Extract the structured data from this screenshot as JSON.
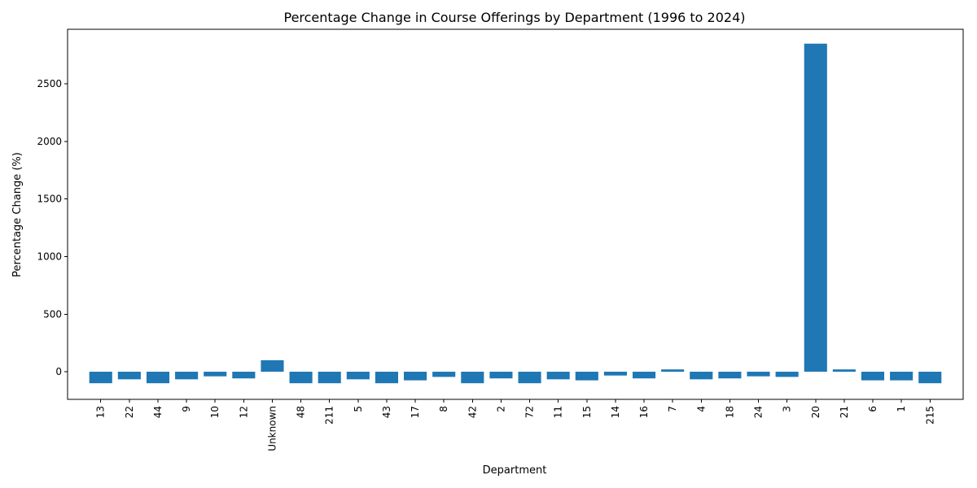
{
  "chart_data": {
    "type": "bar",
    "title": "Percentage Change in Course Offerings by Department (1996 to 2024)",
    "xlabel": "Department",
    "ylabel": "Percentage Change (%)",
    "categories": [
      "13",
      "22",
      "44",
      "9",
      "10",
      "12",
      "Unknown",
      "48",
      "211",
      "5",
      "43",
      "17",
      "8",
      "42",
      "2",
      "72",
      "11",
      "15",
      "14",
      "16",
      "7",
      "4",
      "18",
      "24",
      "3",
      "20",
      "21",
      "6",
      "1",
      "215"
    ],
    "values": [
      -100,
      -66,
      -100,
      -66,
      -40,
      -58,
      100,
      -100,
      -100,
      -66,
      -100,
      -75,
      -45,
      -100,
      -58,
      -100,
      -66,
      -75,
      -33,
      -58,
      20,
      -66,
      -58,
      -40,
      -45,
      2850,
      20,
      -75,
      -75,
      -100
    ],
    "ylim": [
      -240,
      2975
    ],
    "yticks": [
      0,
      500,
      1000,
      1500,
      2000,
      2500
    ],
    "grid": false,
    "bar_color": "#1f77b4"
  }
}
